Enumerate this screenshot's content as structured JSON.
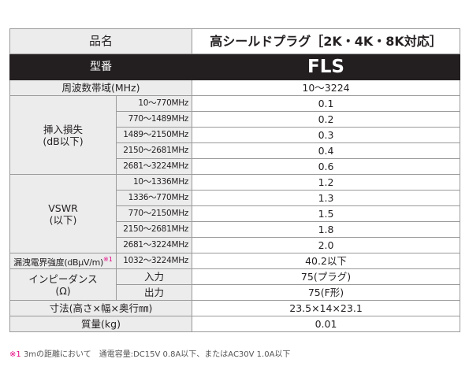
{
  "header": {
    "label": "品名",
    "value": "高シールドプラグ［2K・4K・8K対応］"
  },
  "model": {
    "label": "型番",
    "value": "FLS"
  },
  "frequency": {
    "label": "周波数帯域(MHz)",
    "value": "10～3224"
  },
  "insertion_loss": {
    "label": [
      "挿入損失",
      "(dB以下)"
    ],
    "rows": [
      [
        "10～770MHz",
        "0.1"
      ],
      [
        "770～1489MHz",
        "0.2"
      ],
      [
        "1489～2150MHz",
        "0.3"
      ],
      [
        "2150～2681MHz",
        "0.4"
      ],
      [
        "2681～3224MHz",
        "0.6"
      ]
    ]
  },
  "vswr": {
    "label": [
      "VSWR",
      "(以下)"
    ],
    "rows": [
      [
        "10～1336MHz",
        "1.2"
      ],
      [
        "1336～770MHz",
        "1.3"
      ],
      [
        "770～2150MHz",
        "1.5"
      ],
      [
        "2150～2681MHz",
        "1.8"
      ],
      [
        "2681～3224MHz",
        "2.0"
      ]
    ]
  },
  "leakage": {
    "label": "漏洩電界強度(dBμV/m)",
    "note_mark": "※1",
    "range": "1032～3224MHz",
    "value": "40.2以下"
  },
  "impedance": {
    "label": [
      "インピーダンス",
      "(Ω)"
    ],
    "rows": [
      [
        "入力",
        "75(プラグ)"
      ],
      [
        "出力",
        "75(F形)"
      ]
    ]
  },
  "dimensions": {
    "label": "寸法(高さ×幅×奥行㎜)",
    "value": "23.5×14×23.1"
  },
  "mass": {
    "label": "質量(kg)",
    "value": "0.01"
  },
  "footnote": {
    "mark": "※1",
    "text": "3mの距離において　通電容量:DC15V 0.8A以下、またはAC30V 1.0A以下"
  }
}
